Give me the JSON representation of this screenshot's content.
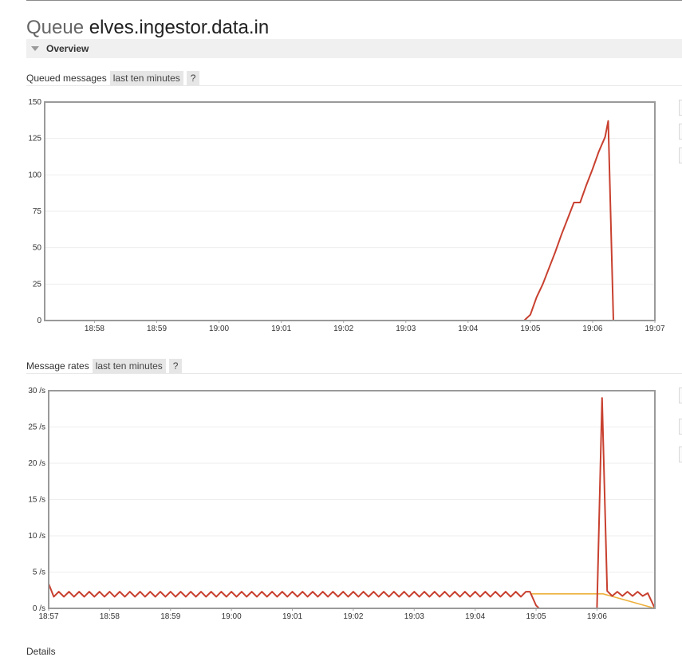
{
  "page": {
    "title_prefix": "Queue",
    "queue_name": "elves.ingestor.data.in",
    "section": "Overview",
    "details_label": "Details"
  },
  "queued_chart": {
    "label": "Queued messages",
    "range": "last ten minutes",
    "help": "?"
  },
  "rates_chart": {
    "label": "Message rates",
    "range": "last ten minutes",
    "help": "?"
  },
  "colors": {
    "line_primary": "#c8402f",
    "line_secondary": "#edb03c",
    "line_tertiary": "#7b68c6",
    "line_unacked": "#8fc2dd",
    "plot_border": "#9a9a9a",
    "grid": "#eeeeee"
  },
  "chart_data": [
    {
      "type": "line",
      "title": "Queued messages",
      "x_tick_labels": [
        "18:58",
        "18:59",
        "19:00",
        "19:01",
        "19:02",
        "19:03",
        "19:04",
        "19:05",
        "19:06",
        "19:07"
      ],
      "y_tick_labels": [
        "0",
        "25",
        "50",
        "75",
        "100",
        "125",
        "150"
      ],
      "xlim": [
        "18:57:12",
        "19:07:00"
      ],
      "ylim": [
        0,
        150
      ],
      "grid": true,
      "series": [
        {
          "color": "#c8402f",
          "points": [
            [
              "18:57:12",
              0
            ],
            [
              "19:04:54",
              0
            ],
            [
              "19:05:00",
              4
            ],
            [
              "19:05:06",
              16
            ],
            [
              "19:05:12",
              25
            ],
            [
              "19:05:18",
              36
            ],
            [
              "19:05:24",
              47
            ],
            [
              "19:05:30",
              59
            ],
            [
              "19:05:36",
              70
            ],
            [
              "19:05:42",
              81
            ],
            [
              "19:05:48",
              81
            ],
            [
              "19:05:54",
              93
            ],
            [
              "19:06:00",
              104
            ],
            [
              "19:06:06",
              116
            ],
            [
              "19:06:12",
              126
            ],
            [
              "19:06:15",
              137
            ],
            [
              "19:06:20",
              0
            ],
            [
              "19:07:00",
              0
            ]
          ]
        },
        {
          "color": "#8fc2dd",
          "points": [
            [
              "19:04:54",
              0
            ],
            [
              "19:06:18",
              0
            ]
          ]
        }
      ]
    },
    {
      "type": "line",
      "title": "Message rates",
      "x_tick_labels": [
        "18:57",
        "18:58",
        "18:59",
        "19:00",
        "19:01",
        "19:02",
        "19:03",
        "19:04",
        "19:05",
        "19:06"
      ],
      "y_tick_labels": [
        "0 /s",
        "5 /s",
        "10 /s",
        "15 /s",
        "20 /s",
        "25 /s",
        "30 /s"
      ],
      "xlim": [
        "18:57:00",
        "19:06:57"
      ],
      "ylim": [
        0,
        30
      ],
      "unit": "/s",
      "grid": true,
      "series": [
        {
          "color": "#edb03c",
          "points": [
            [
              "19:04:54",
              2
            ],
            [
              "19:06:00",
              2
            ],
            [
              "19:06:06",
              2
            ],
            [
              "19:06:57",
              0
            ]
          ]
        },
        {
          "color": "#7b68c6",
          "points": [
            [
              "18:57:00",
              0
            ],
            [
              "19:06:57",
              0
            ]
          ]
        },
        {
          "color": "#c8402f",
          "zigzag": {
            "from": "18:57:00",
            "to": "19:04:54",
            "step_seconds": 5,
            "high": 2.3,
            "low": 1.6,
            "start": 3.4
          },
          "points": [
            [
              "19:04:54",
              2.3
            ],
            [
              "19:05:00",
              0.4
            ],
            [
              "19:05:03",
              0
            ],
            [
              "19:06:00",
              0
            ],
            [
              "19:06:05",
              29
            ],
            [
              "19:06:10",
              2.4
            ],
            [
              "19:06:15",
              1.7
            ],
            [
              "19:06:20",
              2.3
            ],
            [
              "19:06:25",
              1.7
            ],
            [
              "19:06:30",
              2.3
            ],
            [
              "19:06:35",
              1.7
            ],
            [
              "19:06:40",
              2.3
            ],
            [
              "19:06:45",
              1.7
            ],
            [
              "19:06:50",
              2.1
            ],
            [
              "19:06:57",
              0
            ]
          ]
        }
      ]
    }
  ]
}
